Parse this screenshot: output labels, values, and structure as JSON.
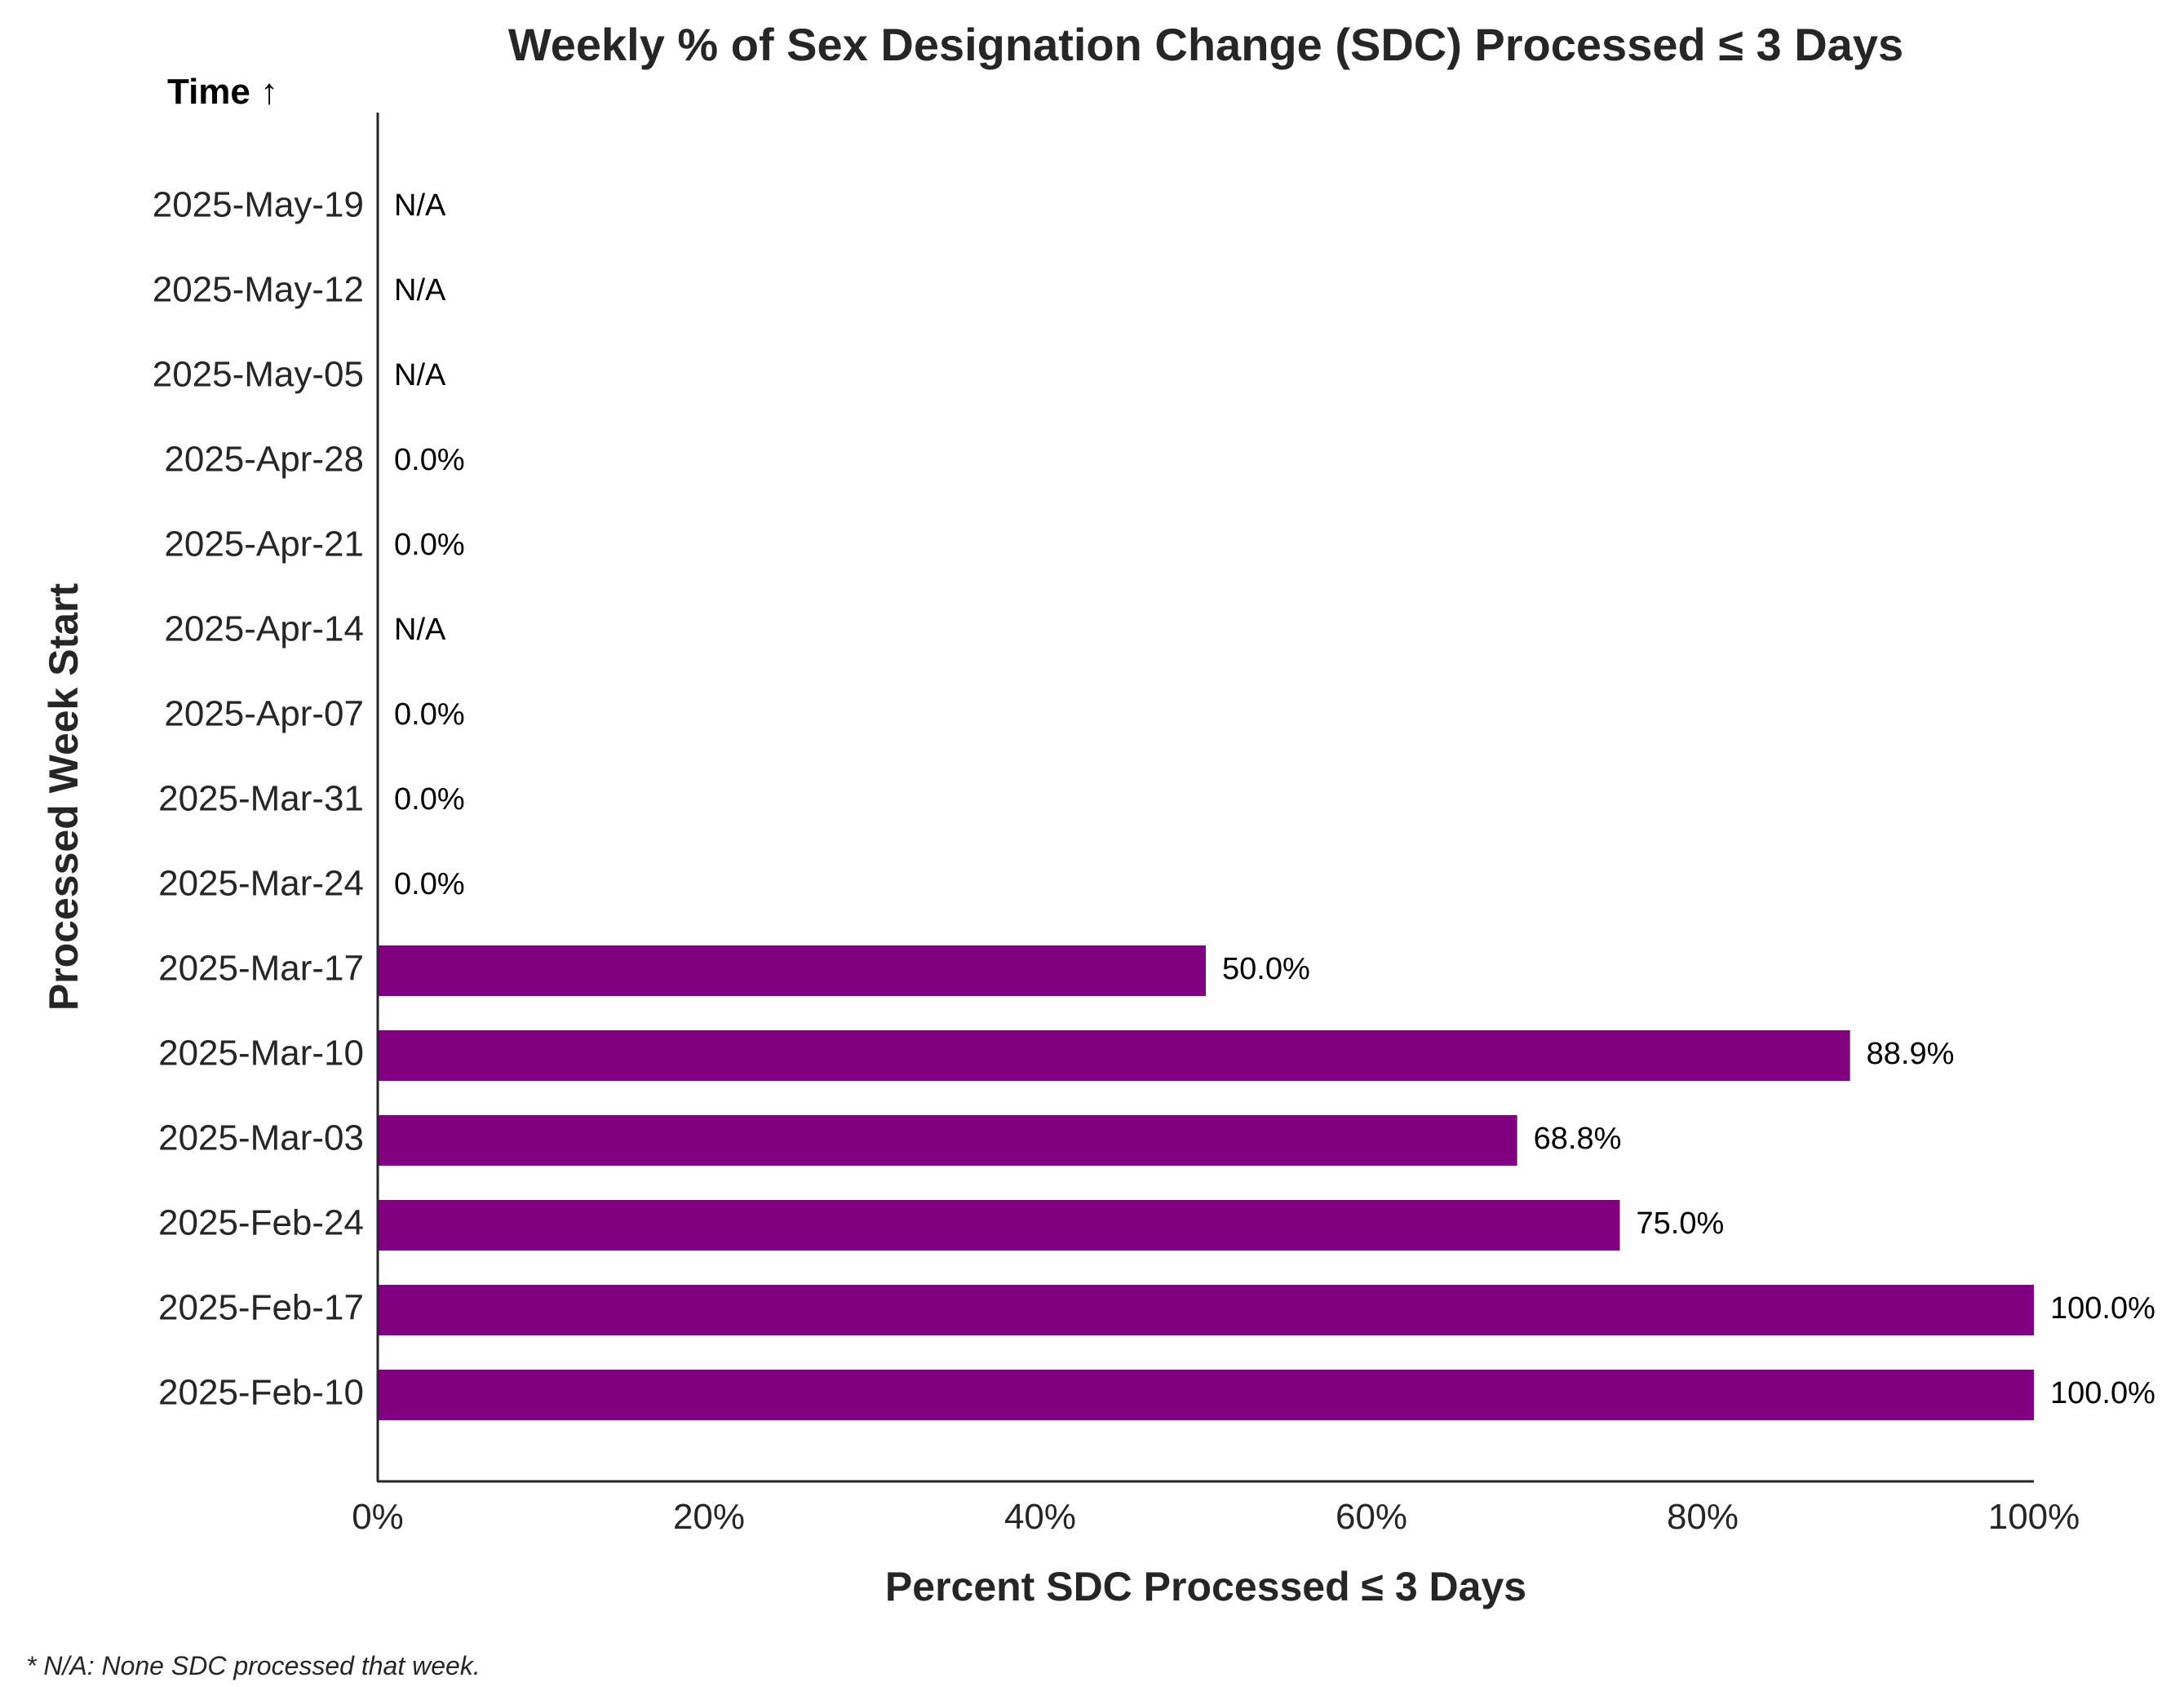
{
  "chart_data": {
    "type": "bar",
    "orientation": "horizontal",
    "title": "Weekly % of Sex Designation Change (SDC) Processed ≤ 3 Days",
    "xlabel": "Percent SDC Processed ≤ 3 Days",
    "ylabel": "Processed Week Start",
    "time_marker": "Time ↑",
    "footnote": "* N/A: None SDC processed that week.",
    "categories": [
      "2025-Feb-10",
      "2025-Feb-17",
      "2025-Feb-24",
      "2025-Mar-03",
      "2025-Mar-10",
      "2025-Mar-17",
      "2025-Mar-24",
      "2025-Mar-31",
      "2025-Apr-07",
      "2025-Apr-14",
      "2025-Apr-21",
      "2025-Apr-28",
      "2025-May-05",
      "2025-May-12",
      "2025-May-19"
    ],
    "values": [
      100.0,
      100.0,
      75.0,
      68.8,
      88.9,
      50.0,
      0.0,
      0.0,
      0.0,
      null,
      0.0,
      0.0,
      null,
      null,
      null
    ],
    "data_labels": [
      "100.0%",
      "100.0%",
      "75.0%",
      "68.8%",
      "88.9%",
      "50.0%",
      "0.0%",
      "0.0%",
      "0.0%",
      "N/A",
      "0.0%",
      "0.0%",
      "N/A",
      "N/A",
      "N/A"
    ],
    "xticks": [
      0,
      20,
      40,
      60,
      80,
      100
    ],
    "xtick_labels": [
      "0%",
      "20%",
      "40%",
      "60%",
      "80%",
      "100%"
    ],
    "xlim": [
      0,
      100
    ],
    "grid": false,
    "bar_color": "#800080"
  }
}
